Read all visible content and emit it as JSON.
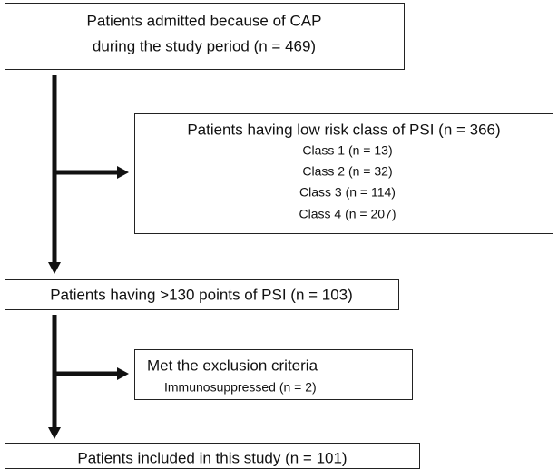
{
  "nodes": [
    {
      "lines": [
        "Patients admitted because of CAP",
        "during the study period (n = 469)"
      ]
    },
    {
      "title": "Patients having low risk class of PSI (n = 366)",
      "items": [
        "Class 1 (n = 13)",
        "Class 2 (n = 32)",
        "Class 3 (n = 114)",
        "Class 4 (n = 207)"
      ]
    },
    {
      "title": "Patients having >130 points of PSI (n = 103)"
    },
    {
      "title": "Met the exclusion criteria",
      "items": [
        "Immunosuppressed (n = 2)"
      ]
    },
    {
      "title": "Patients included in this study (n = 101)"
    }
  ]
}
